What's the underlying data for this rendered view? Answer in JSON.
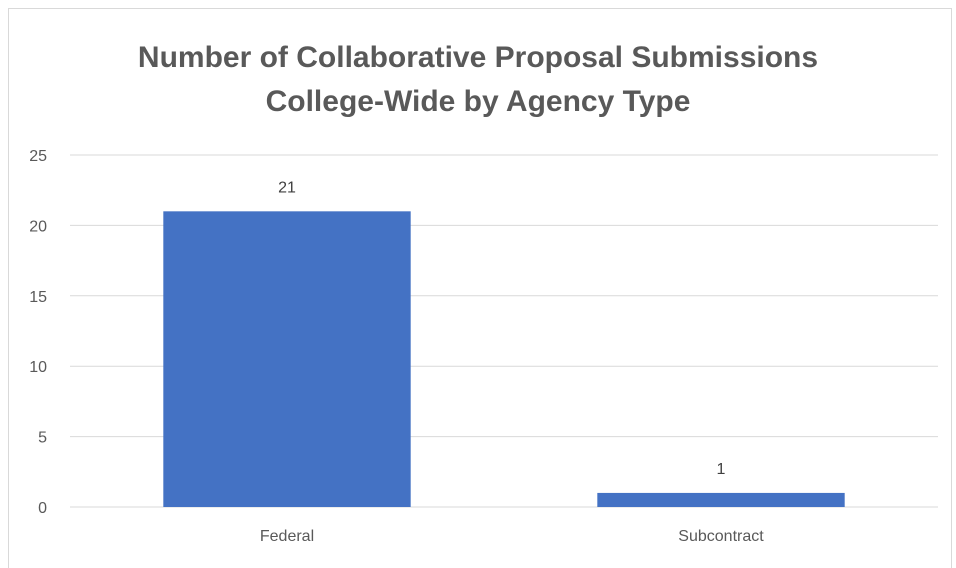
{
  "chart_data": {
    "type": "bar",
    "title_lines": [
      "Number of Collaborative Proposal Submissions",
      "College-Wide by Agency Type"
    ],
    "categories": [
      "Federal",
      "Subcontract"
    ],
    "values": [
      21,
      1
    ],
    "data_labels": [
      "21",
      "1"
    ],
    "y_ticks": [
      "0",
      "5",
      "10",
      "15",
      "20",
      "25"
    ],
    "ylim": [
      0,
      25
    ],
    "grid": true,
    "legend": "none",
    "bar_color": "#4472C4",
    "grid_color": "#d9d9d9",
    "text_color": "#595959"
  }
}
